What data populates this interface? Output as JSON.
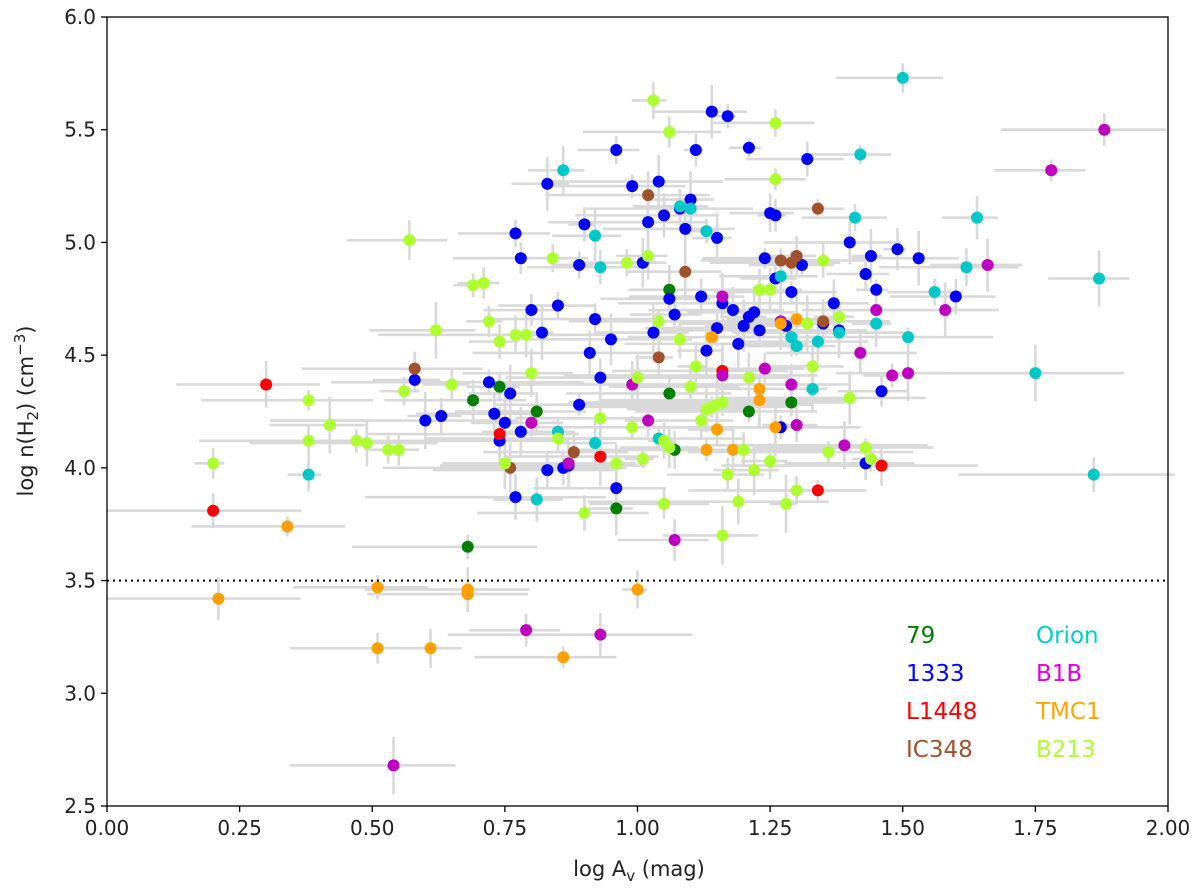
{
  "chart_data": {
    "type": "scatter",
    "xlabel_main": "log A",
    "xlabel_sub": "v",
    "xlabel_unit": " (mag)",
    "ylabel_main": "log n(H",
    "ylabel_sub": "2",
    "ylabel_mid": ") (cm",
    "ylabel_sup": "−3",
    "ylabel_end": ")",
    "xlim": [
      0.0,
      2.0
    ],
    "ylim": [
      2.5,
      6.0
    ],
    "xticks": [
      "0.00",
      "0.25",
      "0.50",
      "0.75",
      "1.00",
      "1.25",
      "1.50",
      "1.75",
      "2.00"
    ],
    "yticks": [
      "2.5",
      "3.0",
      "3.5",
      "4.0",
      "4.5",
      "5.0",
      "5.5",
      "6.0"
    ],
    "threshold_y": 3.5,
    "legend": [
      {
        "label": "79",
        "color": "#007f00"
      },
      {
        "label": "Orion",
        "color": "#00d0d0"
      },
      {
        "label": "1333",
        "color": "#0000ff"
      },
      {
        "label": "B1B",
        "color": "#e000e0"
      },
      {
        "label": "L1448",
        "color": "#ff0000"
      },
      {
        "label": "TMC1",
        "color": "#ffa500"
      },
      {
        "label": "IC348",
        "color": "#a0522d"
      },
      {
        "label": "B213",
        "color": "#adff2f"
      }
    ],
    "series": [
      {
        "name": "79",
        "color": "#008000",
        "marker_color": "#007f00",
        "points": [
          [
            0.69,
            4.3
          ],
          [
            0.74,
            4.36
          ],
          [
            0.81,
            4.25
          ],
          [
            0.96,
            3.82
          ],
          [
            1.06,
            4.33
          ],
          [
            1.06,
            4.79
          ],
          [
            1.21,
            4.25
          ],
          [
            1.29,
            4.29
          ],
          [
            0.68,
            3.65
          ],
          [
            1.07,
            4.08
          ]
        ]
      },
      {
        "name": "1333",
        "color": "#0000ff",
        "marker_color": "#0000ff",
        "points": [
          [
            0.58,
            4.39
          ],
          [
            0.6,
            4.21
          ],
          [
            0.63,
            4.23
          ],
          [
            0.72,
            4.38
          ],
          [
            0.73,
            4.24
          ],
          [
            0.74,
            4.12
          ],
          [
            0.76,
            4.33
          ],
          [
            0.77,
            5.04
          ],
          [
            0.78,
            4.93
          ],
          [
            0.78,
            4.16
          ],
          [
            0.8,
            4.7
          ],
          [
            0.82,
            4.6
          ],
          [
            0.83,
            5.26
          ],
          [
            0.85,
            4.72
          ],
          [
            0.86,
            4.0
          ],
          [
            0.87,
            4.01
          ],
          [
            0.89,
            4.9
          ],
          [
            0.89,
            4.28
          ],
          [
            0.9,
            5.08
          ],
          [
            0.91,
            4.51
          ],
          [
            0.92,
            4.66
          ],
          [
            0.93,
            4.4
          ],
          [
            0.95,
            4.57
          ],
          [
            0.96,
            3.91
          ],
          [
            0.96,
            5.41
          ],
          [
            0.99,
            5.25
          ],
          [
            1.01,
            4.91
          ],
          [
            1.02,
            5.09
          ],
          [
            1.04,
            5.27
          ],
          [
            1.05,
            5.12
          ],
          [
            1.06,
            4.75
          ],
          [
            1.07,
            4.68
          ],
          [
            1.08,
            5.15
          ],
          [
            1.09,
            5.06
          ],
          [
            1.1,
            5.19
          ],
          [
            1.11,
            5.41
          ],
          [
            1.12,
            4.76
          ],
          [
            1.13,
            4.52
          ],
          [
            1.14,
            5.58
          ],
          [
            1.15,
            4.62
          ],
          [
            1.15,
            5.02
          ],
          [
            1.16,
            4.73
          ],
          [
            1.17,
            5.56
          ],
          [
            1.18,
            4.7
          ],
          [
            1.19,
            4.55
          ],
          [
            1.2,
            4.63
          ],
          [
            1.21,
            4.67
          ],
          [
            1.21,
            5.42
          ],
          [
            1.22,
            4.69
          ],
          [
            1.23,
            4.61
          ],
          [
            1.24,
            4.93
          ],
          [
            1.25,
            5.13
          ],
          [
            1.26,
            5.12
          ],
          [
            1.26,
            4.84
          ],
          [
            1.27,
            4.18
          ],
          [
            1.28,
            4.63
          ],
          [
            1.29,
            4.78
          ],
          [
            1.31,
            4.9
          ],
          [
            1.32,
            5.37
          ],
          [
            1.35,
            4.64
          ],
          [
            1.37,
            4.73
          ],
          [
            1.38,
            4.61
          ],
          [
            1.4,
            5.0
          ],
          [
            1.43,
            4.86
          ],
          [
            1.44,
            4.94
          ],
          [
            1.45,
            4.79
          ],
          [
            1.46,
            4.34
          ],
          [
            1.49,
            4.97
          ],
          [
            1.43,
            4.02
          ],
          [
            1.53,
            4.93
          ],
          [
            1.6,
            4.76
          ],
          [
            0.75,
            4.2
          ],
          [
            0.83,
            3.99
          ],
          [
            0.77,
            3.87
          ],
          [
            1.03,
            4.6
          ]
        ]
      },
      {
        "name": "L1448",
        "color": "#ff0000",
        "marker_color": "#ff0000",
        "points": [
          [
            0.2,
            3.81
          ],
          [
            0.3,
            4.37
          ],
          [
            0.74,
            4.15
          ],
          [
            0.93,
            4.05
          ],
          [
            1.16,
            4.43
          ],
          [
            1.34,
            3.9
          ],
          [
            1.46,
            4.01
          ]
        ]
      },
      {
        "name": "IC348",
        "color": "#a0522d",
        "marker_color": "#a0522d",
        "points": [
          [
            0.58,
            4.44
          ],
          [
            0.76,
            4.0
          ],
          [
            0.88,
            4.07
          ],
          [
            1.02,
            5.21
          ],
          [
            1.04,
            4.49
          ],
          [
            1.09,
            4.87
          ],
          [
            1.27,
            4.92
          ],
          [
            1.29,
            4.91
          ],
          [
            1.3,
            4.94
          ],
          [
            1.34,
            5.15
          ],
          [
            1.35,
            4.65
          ]
        ]
      },
      {
        "name": "Orion",
        "color": "#00d0d0",
        "marker_color": "#00c8c8",
        "points": [
          [
            0.38,
            3.97
          ],
          [
            0.81,
            3.86
          ],
          [
            0.86,
            5.32
          ],
          [
            0.92,
            5.03
          ],
          [
            0.93,
            4.89
          ],
          [
            1.04,
            4.13
          ],
          [
            1.08,
            5.16
          ],
          [
            1.1,
            5.15
          ],
          [
            1.13,
            5.05
          ],
          [
            1.27,
            4.85
          ],
          [
            1.29,
            4.58
          ],
          [
            1.3,
            4.54
          ],
          [
            1.33,
            4.35
          ],
          [
            1.34,
            4.56
          ],
          [
            1.38,
            4.6
          ],
          [
            1.41,
            5.11
          ],
          [
            1.42,
            5.39
          ],
          [
            1.45,
            4.64
          ],
          [
            1.51,
            4.58
          ],
          [
            1.5,
            5.73
          ],
          [
            1.56,
            4.78
          ],
          [
            1.62,
            4.89
          ],
          [
            1.64,
            5.11
          ],
          [
            1.75,
            4.42
          ],
          [
            1.87,
            4.84
          ],
          [
            1.86,
            3.97
          ],
          [
            0.85,
            4.16
          ],
          [
            0.92,
            4.11
          ]
        ]
      },
      {
        "name": "B1B",
        "color": "#e000e0",
        "marker_color": "#c000c0",
        "points": [
          [
            0.54,
            2.68
          ],
          [
            0.79,
            3.28
          ],
          [
            0.87,
            4.02
          ],
          [
            0.93,
            3.26
          ],
          [
            0.99,
            4.37
          ],
          [
            1.07,
            3.68
          ],
          [
            1.16,
            4.76
          ],
          [
            1.16,
            4.41
          ],
          [
            1.24,
            4.44
          ],
          [
            1.29,
            4.37
          ],
          [
            1.3,
            4.19
          ],
          [
            1.39,
            4.1
          ],
          [
            1.42,
            4.51
          ],
          [
            1.45,
            4.7
          ],
          [
            1.48,
            4.41
          ],
          [
            1.51,
            4.42
          ],
          [
            1.58,
            4.7
          ],
          [
            1.66,
            4.9
          ],
          [
            1.78,
            5.32
          ],
          [
            1.88,
            5.5
          ],
          [
            0.8,
            4.2
          ],
          [
            1.02,
            4.21
          ],
          [
            1.27,
            4.65
          ]
        ]
      },
      {
        "name": "TMC1",
        "color": "#ffa500",
        "marker_color": "#ffa000",
        "points": [
          [
            0.21,
            3.42
          ],
          [
            0.34,
            3.74
          ],
          [
            0.51,
            3.47
          ],
          [
            0.51,
            3.2
          ],
          [
            0.61,
            3.2
          ],
          [
            0.68,
            3.44
          ],
          [
            0.68,
            3.46
          ],
          [
            0.86,
            3.16
          ],
          [
            1.0,
            3.46
          ],
          [
            1.14,
            4.58
          ],
          [
            1.13,
            4.08
          ],
          [
            1.15,
            4.17
          ],
          [
            1.18,
            4.08
          ],
          [
            1.23,
            4.3
          ],
          [
            1.23,
            4.35
          ],
          [
            1.26,
            4.18
          ],
          [
            1.27,
            4.64
          ],
          [
            1.3,
            4.66
          ]
        ]
      },
      {
        "name": "B213",
        "color": "#adff2f",
        "marker_color": "#adff2f",
        "points": [
          [
            0.2,
            4.02
          ],
          [
            0.38,
            4.3
          ],
          [
            0.38,
            4.12
          ],
          [
            0.42,
            4.19
          ],
          [
            0.47,
            4.12
          ],
          [
            0.49,
            4.11
          ],
          [
            0.53,
            4.08
          ],
          [
            0.55,
            4.08
          ],
          [
            0.56,
            4.34
          ],
          [
            0.57,
            5.01
          ],
          [
            0.62,
            4.61
          ],
          [
            0.65,
            4.37
          ],
          [
            0.69,
            4.81
          ],
          [
            0.71,
            4.82
          ],
          [
            0.72,
            4.65
          ],
          [
            0.74,
            4.56
          ],
          [
            0.75,
            4.02
          ],
          [
            0.77,
            4.59
          ],
          [
            0.79,
            4.59
          ],
          [
            0.8,
            4.42
          ],
          [
            0.84,
            4.93
          ],
          [
            0.85,
            4.13
          ],
          [
            0.9,
            3.8
          ],
          [
            0.93,
            4.22
          ],
          [
            0.96,
            4.02
          ],
          [
            0.98,
            4.91
          ],
          [
            1.0,
            4.4
          ],
          [
            1.02,
            4.94
          ],
          [
            1.03,
            5.63
          ],
          [
            1.04,
            4.65
          ],
          [
            1.05,
            3.84
          ],
          [
            1.05,
            4.12
          ],
          [
            1.06,
            5.49
          ],
          [
            1.08,
            4.57
          ],
          [
            1.1,
            4.36
          ],
          [
            1.11,
            4.45
          ],
          [
            1.13,
            4.26
          ],
          [
            1.14,
            4.27
          ],
          [
            1.15,
            4.28
          ],
          [
            1.16,
            4.29
          ],
          [
            1.17,
            3.97
          ],
          [
            1.19,
            3.85
          ],
          [
            1.2,
            4.08
          ],
          [
            1.21,
            4.4
          ],
          [
            1.22,
            3.99
          ],
          [
            1.23,
            4.79
          ],
          [
            1.25,
            4.79
          ],
          [
            1.25,
            4.03
          ],
          [
            1.26,
            5.28
          ],
          [
            1.26,
            5.53
          ],
          [
            1.28,
            3.84
          ],
          [
            1.3,
            3.9
          ],
          [
            1.32,
            4.64
          ],
          [
            1.33,
            4.45
          ],
          [
            1.35,
            4.92
          ],
          [
            1.36,
            4.07
          ],
          [
            1.38,
            4.67
          ],
          [
            1.4,
            4.31
          ],
          [
            1.43,
            4.09
          ],
          [
            1.44,
            4.04
          ],
          [
            1.16,
            3.7
          ],
          [
            1.01,
            4.04
          ],
          [
            1.06,
            4.09
          ],
          [
            0.99,
            4.18
          ],
          [
            1.12,
            4.21
          ]
        ]
      }
    ]
  }
}
